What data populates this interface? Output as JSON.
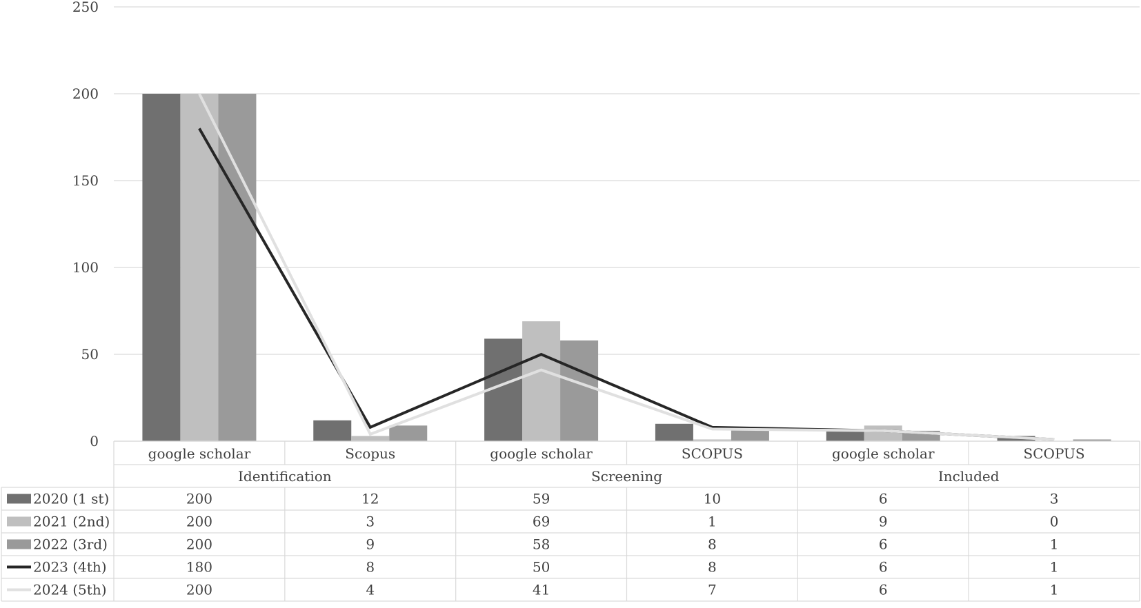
{
  "chart_data": {
    "type": "bar",
    "groups": [
      {
        "label": "Identification",
        "categories": [
          "google scholar",
          "Scopus"
        ]
      },
      {
        "label": "Screening",
        "categories": [
          "google scholar",
          "SCOPUS"
        ]
      },
      {
        "label": "Included",
        "categories": [
          "google scholar",
          "SCOPUS"
        ]
      }
    ],
    "categories": [
      "google scholar",
      "Scopus",
      "google scholar",
      "SCOPUS",
      "google scholar",
      "SCOPUS"
    ],
    "series": [
      {
        "name": "2020 (1 st)",
        "type": "bar",
        "color": "#707070",
        "values": [
          200,
          12,
          59,
          10,
          6,
          3
        ]
      },
      {
        "name": "2021 (2nd)",
        "type": "bar",
        "color": "#bfbfbf",
        "values": [
          200,
          3,
          69,
          1,
          9,
          0
        ]
      },
      {
        "name": "2022 (3rd)",
        "type": "bar",
        "color": "#9a9a9a",
        "values": [
          200,
          9,
          58,
          8,
          6,
          1
        ]
      },
      {
        "name": "2023 (4th)",
        "type": "line",
        "color": "#262626",
        "values": [
          180,
          8,
          50,
          8,
          6,
          1
        ]
      },
      {
        "name": "2024 (5th)",
        "type": "line",
        "color": "#e0e0e0",
        "values": [
          200,
          4,
          41,
          7,
          6,
          1
        ]
      }
    ],
    "ylim": [
      0,
      250
    ],
    "yticks": [
      0,
      50,
      100,
      150,
      200,
      250
    ],
    "grid": true,
    "legend": "data-table"
  }
}
